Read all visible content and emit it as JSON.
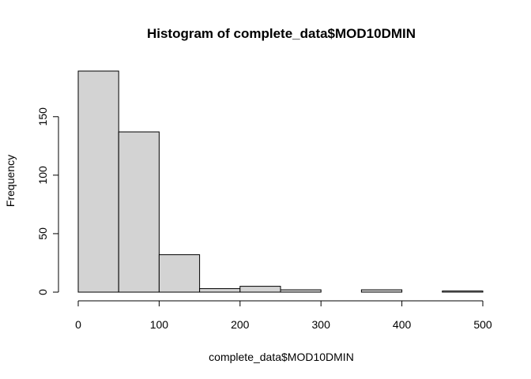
{
  "chart_data": {
    "type": "bar",
    "title": "Histogram of complete_data$MOD10DMIN",
    "xlabel": "complete_data$MOD10DMIN",
    "ylabel": "Frequency",
    "bins": [
      {
        "start": 0,
        "end": 50,
        "count": 189
      },
      {
        "start": 50,
        "end": 100,
        "count": 137
      },
      {
        "start": 100,
        "end": 150,
        "count": 32
      },
      {
        "start": 150,
        "end": 200,
        "count": 3
      },
      {
        "start": 200,
        "end": 250,
        "count": 5
      },
      {
        "start": 250,
        "end": 300,
        "count": 2
      },
      {
        "start": 300,
        "end": 350,
        "count": 0
      },
      {
        "start": 350,
        "end": 400,
        "count": 2
      },
      {
        "start": 400,
        "end": 450,
        "count": 0
      },
      {
        "start": 450,
        "end": 500,
        "count": 1
      }
    ],
    "xlim": [
      0,
      500
    ],
    "ylim": [
      0,
      189
    ],
    "xticks": [
      0,
      100,
      200,
      300,
      400,
      500
    ],
    "yticks": [
      0,
      50,
      100,
      150
    ],
    "bar_color": "#d3d3d3",
    "grid": false
  }
}
